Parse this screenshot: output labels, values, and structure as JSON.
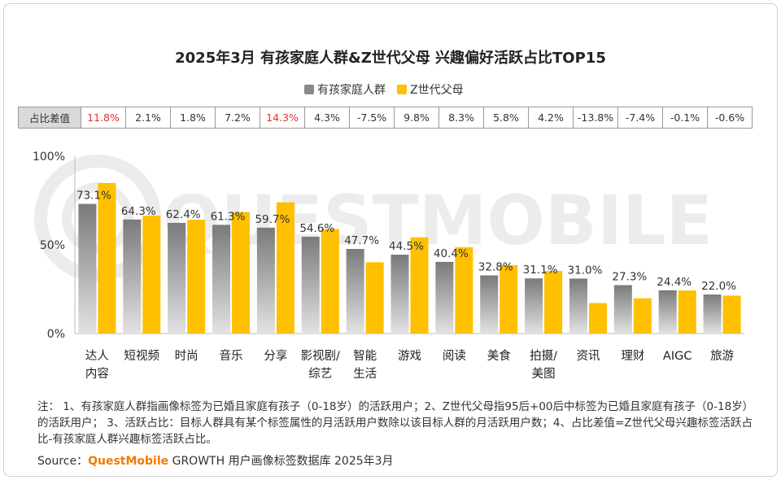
{
  "title": "2025年3月 有孩家庭人群&Z世代父母 兴趣偏好活跃占比TOP15",
  "legend": [
    {
      "label": "有孩家庭人群",
      "color": "#8a8a8a"
    },
    {
      "label": "Z世代父母",
      "color": "#ffc000"
    }
  ],
  "diff_table": {
    "header": "占比差值",
    "values": [
      "11.8%",
      "2.1%",
      "1.8%",
      "7.2%",
      "14.3%",
      "4.3%",
      "-7.5%",
      "9.8%",
      "8.3%",
      "5.8%",
      "4.2%",
      "-13.8%",
      "-7.4%",
      "-0.1%",
      "-0.6%"
    ],
    "highlight": [
      "11.8%",
      "14.3%"
    ]
  },
  "watermark": "QUESTMOBILE",
  "chart_data": {
    "type": "bar",
    "title": "2025年3月 有孩家庭人群&Z世代父母 兴趣偏好活跃占比TOP15",
    "categories": [
      "达人内容",
      "短视频",
      "时尚",
      "音乐",
      "分享",
      "影视剧/综艺",
      "智能生活",
      "游戏",
      "阅读",
      "美食",
      "拍摄/美图",
      "资讯",
      "理财",
      "AIGC",
      "旅游"
    ],
    "category_lines": [
      [
        "达人",
        "内容"
      ],
      [
        "短视频"
      ],
      [
        "时尚"
      ],
      [
        "音乐"
      ],
      [
        "分享"
      ],
      [
        "影视剧/",
        "综艺"
      ],
      [
        "智能",
        "生活"
      ],
      [
        "游戏"
      ],
      [
        "阅读"
      ],
      [
        "美食"
      ],
      [
        "拍摄/",
        "美图"
      ],
      [
        "资讯"
      ],
      [
        "理财"
      ],
      [
        "AIGC"
      ],
      [
        "旅游"
      ]
    ],
    "series": [
      {
        "name": "有孩家庭人群",
        "values": [
          73.1,
          64.3,
          62.4,
          61.3,
          59.7,
          54.6,
          47.7,
          44.5,
          40.4,
          32.8,
          31.1,
          31.0,
          27.3,
          24.4,
          22.0
        ],
        "labels": [
          "73.1%",
          "64.3%",
          "62.4%",
          "61.3%",
          "59.7%",
          "54.6%",
          "47.7%",
          "44.5%",
          "40.4%",
          "32.8%",
          "31.1%",
          "31.0%",
          "27.3%",
          "24.4%",
          "22.0%"
        ]
      },
      {
        "name": "Z世代父母",
        "values": [
          84.9,
          66.4,
          64.2,
          68.5,
          74.0,
          58.9,
          40.2,
          54.3,
          48.7,
          38.6,
          35.3,
          17.2,
          19.9,
          24.3,
          21.4
        ]
      }
    ],
    "ylim": [
      0,
      100
    ],
    "yticks": [
      0,
      50,
      100
    ],
    "ytick_labels": [
      "0%",
      "50%",
      "100%"
    ]
  },
  "note": "注： 1、有孩家庭人群指画像标签为已婚且家庭有孩子（0-18岁）的活跃用户；2、Z世代父母指95后+00后中标签为已婚且家庭有孩子（0-18岁）的活跃用户； 3、活跃占比：目标人群具有某个标签属性的月活跃用户数除以该目标人群的月活跃用户数；4、占比差值=Z世代父母兴趣标签活跃占比-有孩家庭人群兴趣标签活跃占比。",
  "source": {
    "prefix": "Source：",
    "brand": "QuestMobile",
    "text": " GROWTH 用户画像标签数据库 2025年3月"
  }
}
